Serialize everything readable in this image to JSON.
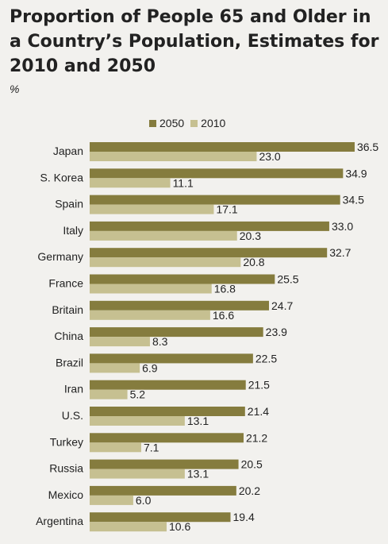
{
  "title": "Proportion of People 65 and Older in a Country’s Population, Estimates for 2010 and 2050",
  "unit": "%",
  "colors": {
    "series_2050": "#857c3e",
    "series_2010": "#c6c091",
    "background": "#f2f1ee"
  },
  "chart_data": {
    "type": "bar",
    "orientation": "horizontal",
    "title": "Proportion of People 65 and Older in a Country’s Population, Estimates for 2010 and 2050",
    "unit": "%",
    "legend": [
      "2050",
      "2010"
    ],
    "legend_position": "top",
    "grid": false,
    "xlim": [
      0,
      37
    ],
    "categories": [
      "Japan",
      "S. Korea",
      "Spain",
      "Italy",
      "Germany",
      "France",
      "Britain",
      "China",
      "Brazil",
      "Iran",
      "U.S.",
      "Turkey",
      "Russia",
      "Mexico",
      "Argentina"
    ],
    "series": [
      {
        "name": "2050",
        "color": "#857c3e",
        "values": [
          36.5,
          34.9,
          34.5,
          33.0,
          32.7,
          25.5,
          24.7,
          23.9,
          22.5,
          21.5,
          21.4,
          21.2,
          20.5,
          20.2,
          19.4
        ],
        "labels": [
          "36.5",
          "34.9",
          "34.5",
          "33.0",
          "32.7",
          "25.5",
          "24.7",
          "23.9",
          "22.5",
          "21.5",
          "21.4",
          "21.2",
          "20.5",
          "20.2",
          "19.4"
        ]
      },
      {
        "name": "2010",
        "color": "#c6c091",
        "values": [
          23.0,
          11.1,
          17.1,
          20.3,
          20.8,
          16.8,
          16.6,
          8.3,
          6.9,
          5.2,
          13.1,
          7.1,
          13.1,
          6.0,
          10.6
        ],
        "labels": [
          "23.0",
          "11.1",
          "17.1",
          "20.3",
          "20.8",
          "16.8",
          "16.6",
          "8.3",
          "6.9",
          "5.2",
          "13.1",
          "7.1",
          "13.1",
          "6.0",
          "10.6"
        ]
      }
    ]
  }
}
